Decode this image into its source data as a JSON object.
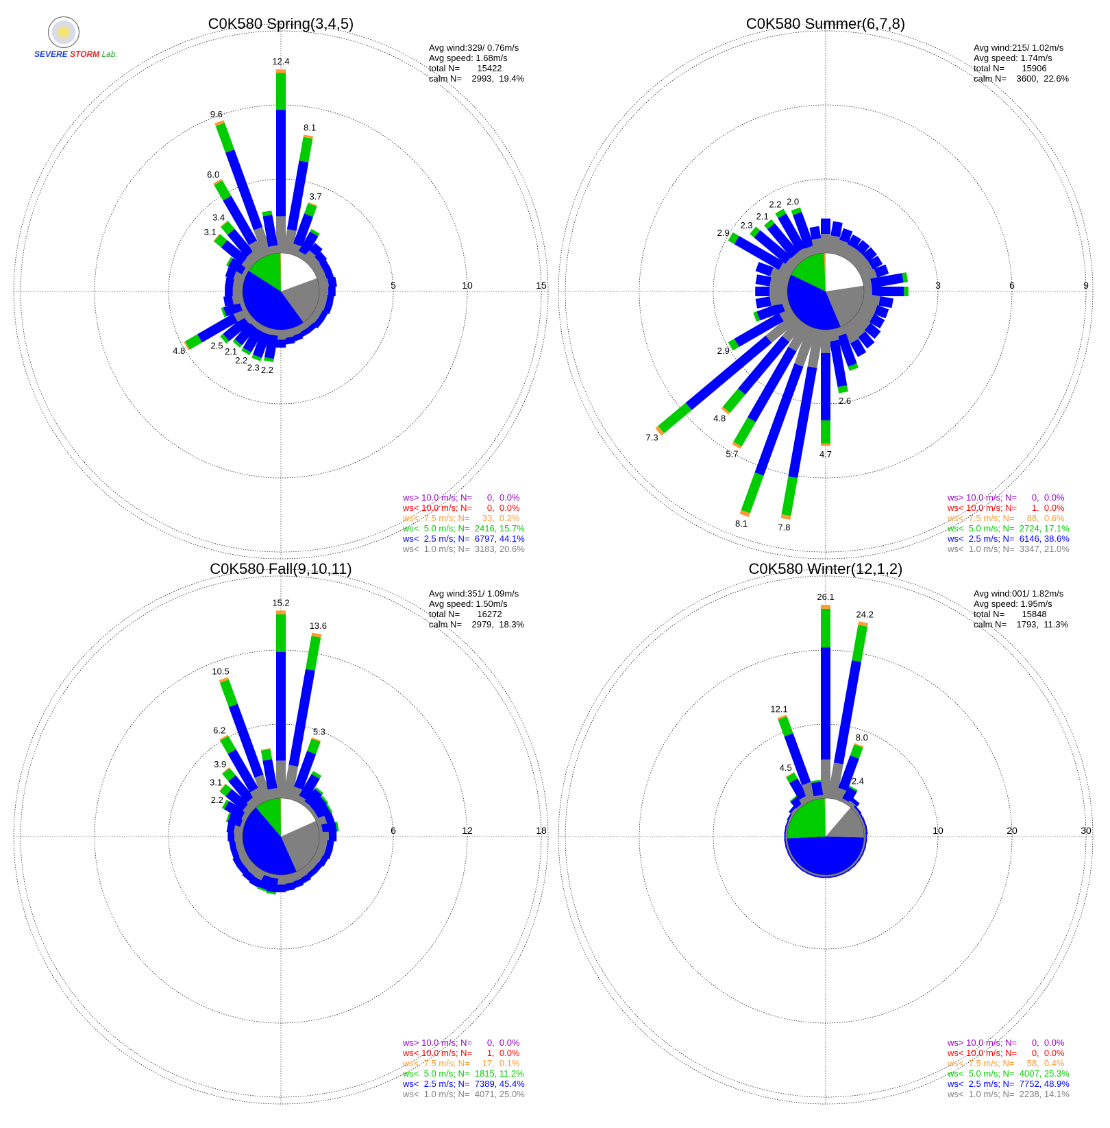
{
  "logo": {
    "line1": "SEVERE",
    "line2": "STORM",
    "lab": "Lab."
  },
  "chart_data": [
    {
      "type": "wind-rose",
      "title": "C0K580 Spring(3,4,5)",
      "rmax": 15,
      "ring_labels": [
        "5",
        "10",
        "15"
      ],
      "stats": [
        "Avg wind:329/ 0.76m/s",
        "Avg speed: 1.68m/s",
        "total N=       15422",
        "calm N=    2993,  19.4%"
      ],
      "calm_pie": [
        19.4,
        20.6,
        44.1,
        15.7,
        0.2
      ],
      "legend": [
        "ws> 10.0 m/s; N=      0,  0.0%",
        "ws< 10.0 m/s; N=      0,  0.0%",
        "ws<  7.5 m/s; N=     33,  0.2%",
        "ws<  5.0 m/s; N=  2416, 15.7%",
        "ws<  2.5 m/s; N=  6797, 44.1%",
        "ws<  1.0 m/s; N=  3183, 20.6%"
      ],
      "bars": [
        {
          "dir": 0,
          "total": 12.4,
          "label": "12.4"
        },
        {
          "dir": 10,
          "total": 8.1,
          "label": "8.1"
        },
        {
          "dir": 20,
          "total": 3.7,
          "label": "3.7"
        },
        {
          "dir": 30,
          "total": 2.1
        },
        {
          "dir": 40,
          "total": 1.4
        },
        {
          "dir": 50,
          "total": 1.2
        },
        {
          "dir": 60,
          "total": 1.1
        },
        {
          "dir": 70,
          "total": 1.1
        },
        {
          "dir": 80,
          "total": 1.2
        },
        {
          "dir": 90,
          "total": 1.1
        },
        {
          "dir": 100,
          "total": 1.0
        },
        {
          "dir": 110,
          "total": 1.0
        },
        {
          "dir": 120,
          "total": 0.9
        },
        {
          "dir": 130,
          "total": 0.9
        },
        {
          "dir": 140,
          "total": 0.8
        },
        {
          "dir": 150,
          "total": 0.8
        },
        {
          "dir": 160,
          "total": 0.9
        },
        {
          "dir": 170,
          "total": 1.0
        },
        {
          "dir": 180,
          "total": 1.2
        },
        {
          "dir": 190,
          "total": 2.2,
          "label": "2.2"
        },
        {
          "dir": 200,
          "total": 2.3,
          "label": "2.3"
        },
        {
          "dir": 210,
          "total": 2.2,
          "label": "2.2"
        },
        {
          "dir": 220,
          "total": 2.1,
          "label": "2.1"
        },
        {
          "dir": 230,
          "total": 2.5,
          "label": "2.5"
        },
        {
          "dir": 240,
          "total": 4.8,
          "label": "4.8"
        },
        {
          "dir": 250,
          "total": 1.6
        },
        {
          "dir": 260,
          "total": 1.3
        },
        {
          "dir": 270,
          "total": 1.2
        },
        {
          "dir": 280,
          "total": 1.2
        },
        {
          "dir": 290,
          "total": 1.3
        },
        {
          "dir": 300,
          "total": 1.5
        },
        {
          "dir": 310,
          "total": 3.1,
          "label": "3.1"
        },
        {
          "dir": 320,
          "total": 3.4,
          "label": "3.4"
        },
        {
          "dir": 330,
          "total": 6.0,
          "label": "6.0"
        },
        {
          "dir": 340,
          "total": 9.6,
          "label": "9.6"
        },
        {
          "dir": 350,
          "total": 2.9
        }
      ]
    },
    {
      "type": "wind-rose",
      "title": "C0K580 Summer(6,7,8)",
      "rmax": 9,
      "ring_labels": [
        "3",
        "6",
        "9"
      ],
      "stats": [
        "Avg wind:215/ 1.02m/s",
        "Avg speed: 1.74m/s",
        "total N=       15906",
        "calm N=    3600,  22.6%"
      ],
      "calm_pie": [
        22.6,
        21.0,
        38.6,
        17.1,
        0.6
      ],
      "legend": [
        "ws> 10.0 m/s; N=      0,  0.0%",
        "ws< 10.0 m/s; N=      1,  0.0%",
        "ws<  7.5 m/s; N=     88,  0.6%",
        "ws<  5.0 m/s; N=  2724, 17.1%",
        "ws<  2.5 m/s; N=  6146, 38.6%",
        "ws<  1.0 m/s; N=  3347, 21.0%"
      ],
      "bars": [
        {
          "dir": 0,
          "total": 1.4
        },
        {
          "dir": 10,
          "total": 1.3
        },
        {
          "dir": 20,
          "total": 1.1
        },
        {
          "dir": 30,
          "total": 1.0
        },
        {
          "dir": 40,
          "total": 1.0
        },
        {
          "dir": 50,
          "total": 1.0
        },
        {
          "dir": 60,
          "total": 1.0
        },
        {
          "dir": 70,
          "total": 1.1
        },
        {
          "dir": 80,
          "total": 1.8
        },
        {
          "dir": 90,
          "total": 1.8
        },
        {
          "dir": 100,
          "total": 1.2
        },
        {
          "dir": 110,
          "total": 1.1
        },
        {
          "dir": 120,
          "total": 1.1
        },
        {
          "dir": 130,
          "total": 1.2
        },
        {
          "dir": 140,
          "total": 1.3
        },
        {
          "dir": 150,
          "total": 1.4
        },
        {
          "dir": 160,
          "total": 1.8
        },
        {
          "dir": 170,
          "total": 2.6,
          "label": "2.6"
        },
        {
          "dir": 180,
          "total": 4.7,
          "label": "4.7"
        },
        {
          "dir": 190,
          "total": 7.8,
          "label": "7.8"
        },
        {
          "dir": 200,
          "total": 8.1,
          "label": "8.1"
        },
        {
          "dir": 210,
          "total": 5.7,
          "label": "5.7"
        },
        {
          "dir": 220,
          "total": 4.8,
          "label": "4.8"
        },
        {
          "dir": 230,
          "total": 7.3,
          "label": "7.3"
        },
        {
          "dir": 240,
          "total": 2.9,
          "label": "2.9"
        },
        {
          "dir": 250,
          "total": 1.5
        },
        {
          "dir": 260,
          "total": 1.3
        },
        {
          "dir": 270,
          "total": 1.3
        },
        {
          "dir": 280,
          "total": 1.3
        },
        {
          "dir": 290,
          "total": 1.4
        },
        {
          "dir": 300,
          "total": 2.9,
          "label": "2.9"
        },
        {
          "dir": 310,
          "total": 2.3,
          "label": "2.3"
        },
        {
          "dir": 320,
          "total": 2.1,
          "label": "2.1"
        },
        {
          "dir": 330,
          "total": 2.2,
          "label": "2.2"
        },
        {
          "dir": 340,
          "total": 2.0,
          "label": "2.0"
        },
        {
          "dir": 350,
          "total": 1.1
        }
      ]
    },
    {
      "type": "wind-rose",
      "title": "C0K580 Fall(9,10,11)",
      "rmax": 18,
      "ring_labels": [
        "6",
        "12",
        "18"
      ],
      "stats": [
        "Avg wind:351/ 1.09m/s",
        "Avg speed: 1.50m/s",
        "total N=       16272",
        "calm N=    2979,  18.3%"
      ],
      "calm_pie": [
        18.3,
        25.0,
        45.4,
        11.2,
        0.1
      ],
      "legend": [
        "ws> 10.0 m/s; N=      0,  0.0%",
        "ws< 10.0 m/s; N=      1,  0.0%",
        "ws<  7.5 m/s; N=     17,  0.1%",
        "ws<  5.0 m/s; N=  1815, 11.2%",
        "ws<  2.5 m/s; N=  7389, 45.4%",
        "ws<  1.0 m/s; N=  4071, 25.0%"
      ],
      "bars": [
        {
          "dir": 0,
          "total": 15.2,
          "label": "15.2"
        },
        {
          "dir": 10,
          "total": 13.6,
          "label": "13.6"
        },
        {
          "dir": 20,
          "total": 5.3,
          "label": "5.3"
        },
        {
          "dir": 30,
          "total": 2.8
        },
        {
          "dir": 40,
          "total": 1.8
        },
        {
          "dir": 50,
          "total": 1.6
        },
        {
          "dir": 60,
          "total": 1.5
        },
        {
          "dir": 70,
          "total": 1.4
        },
        {
          "dir": 80,
          "total": 1.6
        },
        {
          "dir": 90,
          "total": 1.4
        },
        {
          "dir": 100,
          "total": 1.2
        },
        {
          "dir": 110,
          "total": 1.2
        },
        {
          "dir": 120,
          "total": 1.1
        },
        {
          "dir": 130,
          "total": 1.0
        },
        {
          "dir": 140,
          "total": 1.0
        },
        {
          "dir": 150,
          "total": 1.1
        },
        {
          "dir": 160,
          "total": 1.2
        },
        {
          "dir": 170,
          "total": 1.3
        },
        {
          "dir": 180,
          "total": 1.4
        },
        {
          "dir": 190,
          "total": 1.6
        },
        {
          "dir": 200,
          "total": 1.5
        },
        {
          "dir": 210,
          "total": 1.4
        },
        {
          "dir": 220,
          "total": 1.3
        },
        {
          "dir": 230,
          "total": 1.2
        },
        {
          "dir": 240,
          "total": 1.2
        },
        {
          "dir": 250,
          "total": 1.1
        },
        {
          "dir": 260,
          "total": 1.1
        },
        {
          "dir": 270,
          "total": 1.2
        },
        {
          "dir": 280,
          "total": 1.3
        },
        {
          "dir": 290,
          "total": 1.5
        },
        {
          "dir": 300,
          "total": 2.2,
          "label": "2.2"
        },
        {
          "dir": 310,
          "total": 3.1,
          "label": "3.1"
        },
        {
          "dir": 320,
          "total": 3.9,
          "label": "3.9"
        },
        {
          "dir": 330,
          "total": 6.2,
          "label": "6.2"
        },
        {
          "dir": 340,
          "total": 10.5,
          "label": "10.5"
        },
        {
          "dir": 350,
          "total": 4.1
        }
      ]
    },
    {
      "type": "wind-rose",
      "title": "C0K580 Winter(12,1,2)",
      "rmax": 30,
      "ring_labels": [
        "10",
        "20",
        "30"
      ],
      "stats": [
        "Avg wind:001/ 1.82m/s",
        "Avg speed: 1.95m/s",
        "total N=       15848",
        "calm N=    1793,  11.3%"
      ],
      "calm_pie": [
        11.3,
        14.1,
        48.9,
        25.3,
        0.4
      ],
      "legend": [
        "ws> 10.0 m/s; N=      0,  0.0%",
        "ws< 10.0 m/s; N=      0,  0.0%",
        "ws<  7.5 m/s; N=     58,  0.4%",
        "ws<  5.0 m/s; N=  4007, 25.3%",
        "ws<  2.5 m/s; N=  7752, 48.9%",
        "ws<  1.0 m/s; N=  2238, 14.1%"
      ],
      "bars": [
        {
          "dir": 0,
          "total": 26.1,
          "label": "26.1"
        },
        {
          "dir": 10,
          "total": 24.2,
          "label": "24.2"
        },
        {
          "dir": 20,
          "total": 8.0,
          "label": "8.0"
        },
        {
          "dir": 30,
          "total": 2.4,
          "label": "2.4"
        },
        {
          "dir": 40,
          "total": 1.2
        },
        {
          "dir": 50,
          "total": 0.6
        },
        {
          "dir": 60,
          "total": 0.5
        },
        {
          "dir": 70,
          "total": 0.5
        },
        {
          "dir": 80,
          "total": 0.5
        },
        {
          "dir": 90,
          "total": 0.4
        },
        {
          "dir": 100,
          "total": 0.4
        },
        {
          "dir": 110,
          "total": 0.4
        },
        {
          "dir": 120,
          "total": 0.4
        },
        {
          "dir": 130,
          "total": 0.4
        },
        {
          "dir": 140,
          "total": 0.4
        },
        {
          "dir": 150,
          "total": 0.4
        },
        {
          "dir": 160,
          "total": 0.4
        },
        {
          "dir": 170,
          "total": 0.4
        },
        {
          "dir": 180,
          "total": 0.4
        },
        {
          "dir": 190,
          "total": 0.4
        },
        {
          "dir": 200,
          "total": 0.4
        },
        {
          "dir": 210,
          "total": 0.4
        },
        {
          "dir": 220,
          "total": 0.4
        },
        {
          "dir": 230,
          "total": 0.4
        },
        {
          "dir": 240,
          "total": 0.4
        },
        {
          "dir": 250,
          "total": 0.4
        },
        {
          "dir": 260,
          "total": 0.4
        },
        {
          "dir": 270,
          "total": 0.4
        },
        {
          "dir": 280,
          "total": 0.4
        },
        {
          "dir": 290,
          "total": 0.4
        },
        {
          "dir": 300,
          "total": 0.5
        },
        {
          "dir": 310,
          "total": 0.8
        },
        {
          "dir": 320,
          "total": 1.6
        },
        {
          "dir": 330,
          "total": 4.5,
          "label": "4.5"
        },
        {
          "dir": 340,
          "total": 12.1,
          "label": "12.1"
        },
        {
          "dir": 350,
          "total": 2.5
        }
      ]
    }
  ],
  "colors": {
    "calm": "#ffffff",
    "lt1": "#808080",
    "lt2_5": "#0000ff",
    "lt5": "#00cc00",
    "lt7_5": "#ff9933",
    "lt10": "#ff0000",
    "gt10": "#9900cc"
  }
}
